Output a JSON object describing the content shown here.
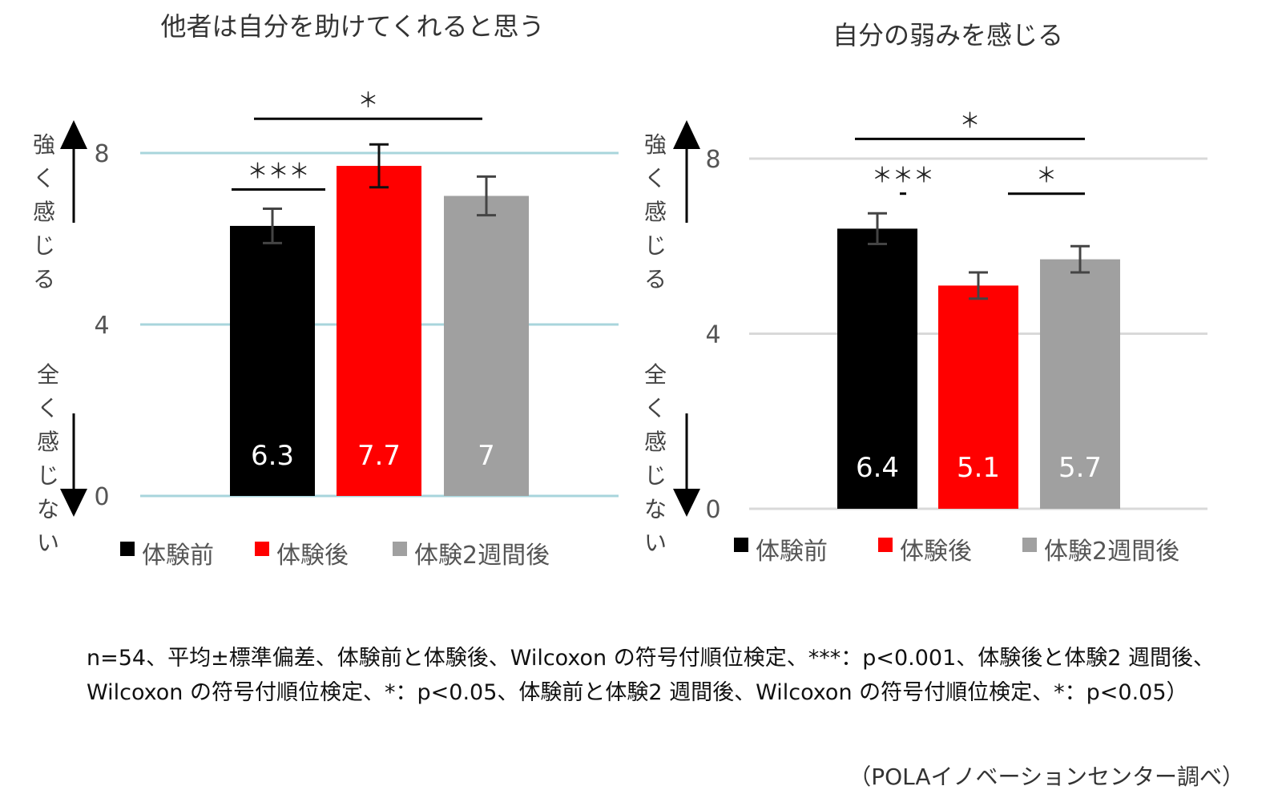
{
  "chart_data": [
    {
      "type": "bar",
      "title": "他者は自分を助けてくれると思う",
      "categories": [
        "体験前",
        "体験後",
        "体験2週間後"
      ],
      "values": [
        6.3,
        7.7,
        7
      ],
      "value_labels": [
        "6.3",
        "7.7",
        "7"
      ],
      "error": [
        0.4,
        0.5,
        0.45
      ],
      "colors": [
        "#000000",
        "#ff0000",
        "#a0a0a0"
      ],
      "ylim": [
        0,
        8
      ],
      "yticks": [
        0,
        4,
        8
      ],
      "ytick_labels": [
        "0",
        "4",
        "8"
      ],
      "grid": true,
      "grid_color": "#a8d5dc",
      "ylabel_top": "強く感じる",
      "ylabel_bottom": "全く感じない",
      "legend": [
        "体験前",
        "体験後",
        "体験2週間後"
      ],
      "significance": [
        {
          "from": 0,
          "to": 1,
          "label": "＊＊＊",
          "level": 7.15
        },
        {
          "from": 0,
          "to": 2,
          "label": "＊",
          "level": 8.8
        }
      ]
    },
    {
      "type": "bar",
      "title": "自分の弱みを感じる",
      "categories": [
        "体験前",
        "体験後",
        "体験2週間後"
      ],
      "values": [
        6.4,
        5.1,
        5.7
      ],
      "value_labels": [
        "6.4",
        "5.1",
        "5.7"
      ],
      "error": [
        0.35,
        0.3,
        0.3
      ],
      "colors": [
        "#000000",
        "#ff0000",
        "#a0a0a0"
      ],
      "ylim": [
        0,
        8
      ],
      "yticks": [
        0,
        4,
        8
      ],
      "ytick_labels": [
        "0",
        "4",
        "8"
      ],
      "grid": true,
      "grid_color": "#d9d9d9",
      "ylabel_top": "強く感じる",
      "ylabel_bottom": "全く感じない",
      "legend": [
        "体験前",
        "体験後",
        "体験2週間後"
      ],
      "significance": [
        {
          "from": 0,
          "to": 1,
          "label": "＊＊＊",
          "level": 7.2
        },
        {
          "from": 1,
          "to": 2,
          "label": "＊",
          "level": 7.2
        },
        {
          "from": 0,
          "to": 2,
          "label": "＊",
          "level": 8.45
        }
      ]
    }
  ],
  "footnote": "n=54、平均±標準偏差、体験前と体験後、Wilcoxon の符号付順位検定、***：p<0.001、体験後と体験2 週間後、Wilcoxon の符号付順位検定、*：p<0.05、体験前と体験2 週間後、Wilcoxon の符号付順位検定、*：p<0.05）",
  "source": "（POLAイノベーションセンター調べ）"
}
